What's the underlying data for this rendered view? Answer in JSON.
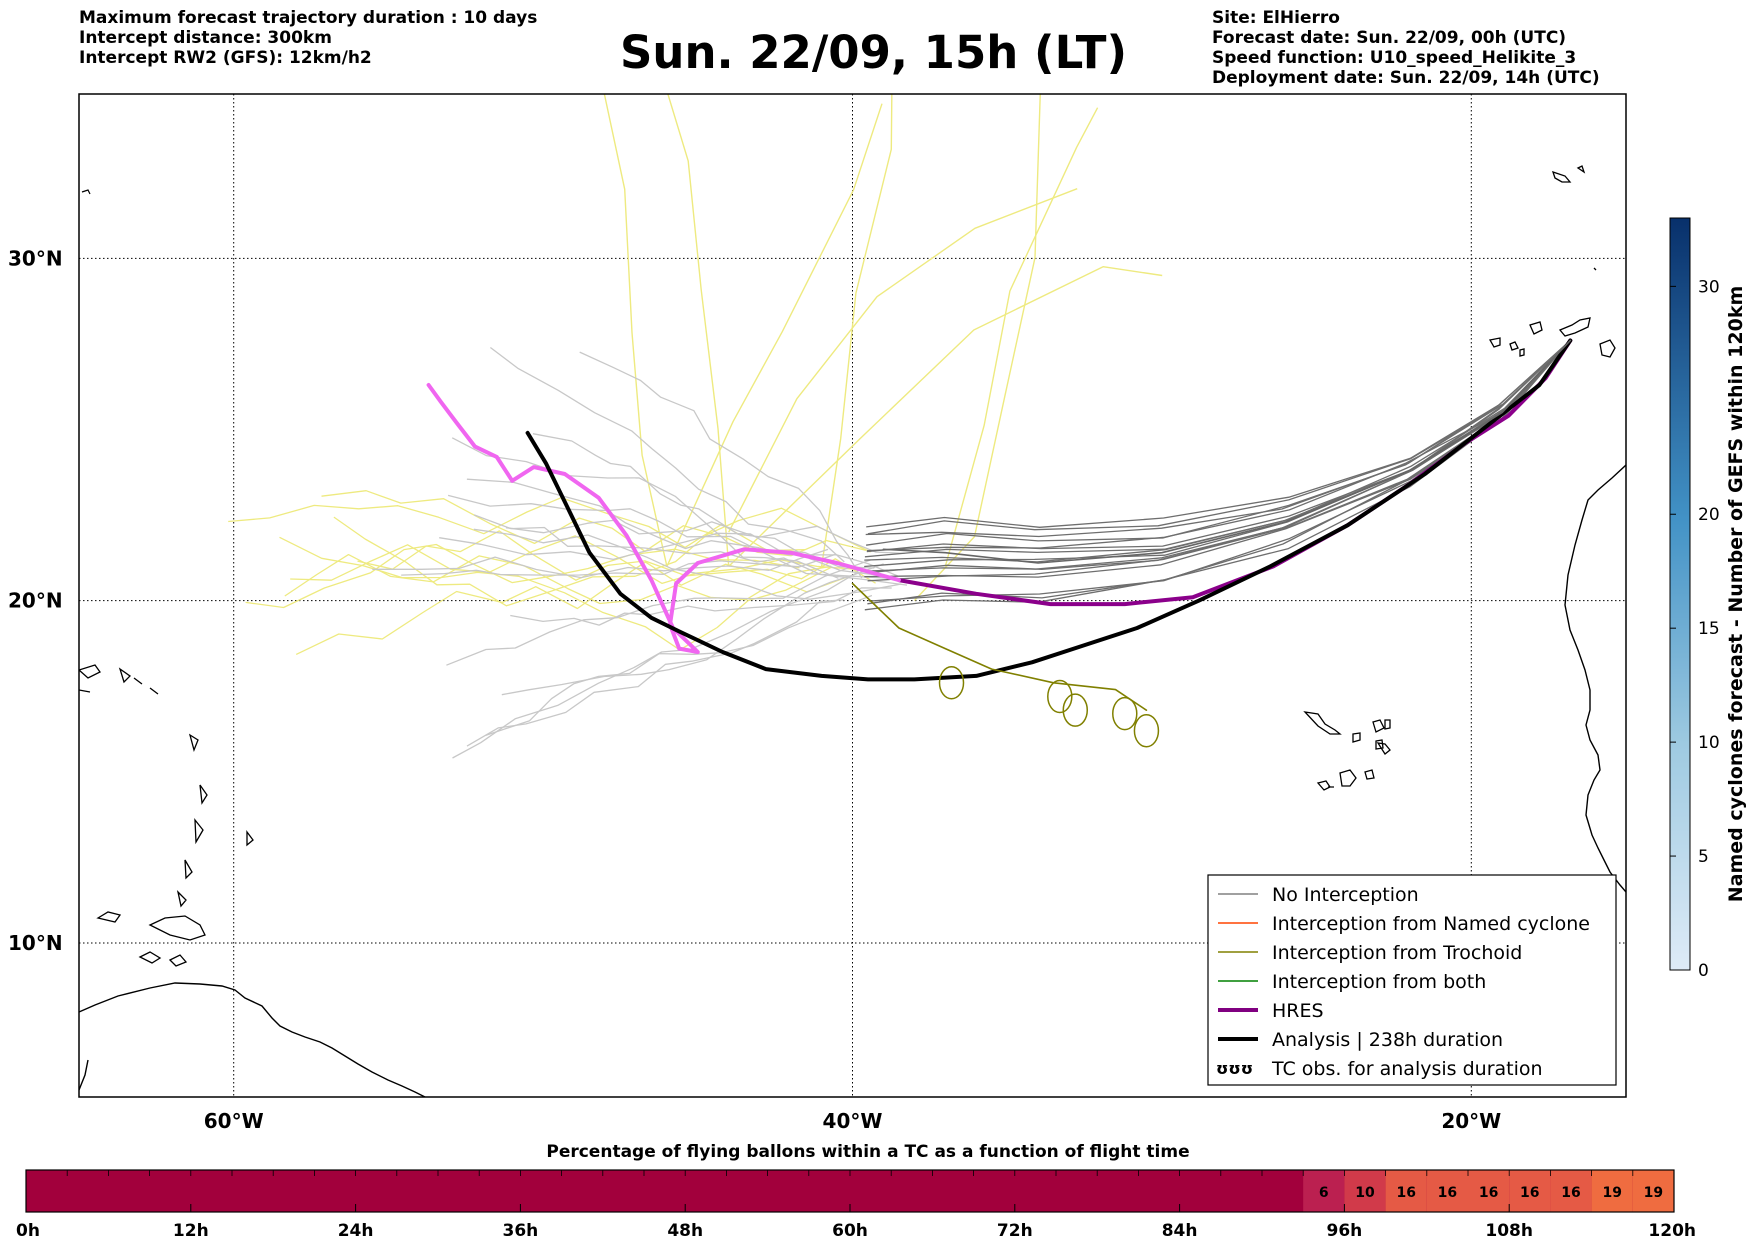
{
  "header": {
    "left_lines": [
      "Maximum forecast trajectory duration : 10 days",
      "Intercept distance: 300km",
      "Intercept RW2 (GFS):  12km/h2"
    ],
    "title": "Sun. 22/09, 15h (LT)",
    "right_lines": [
      "Site: ElHierro",
      "Forecast date: Sun. 22/09, 00h (UTC)",
      "Speed function: U10_speed_Helikite_3",
      "Deployment date: Sun. 22/09, 14h (UTC)"
    ]
  },
  "map": {
    "lon_range": [
      -65,
      -15
    ],
    "lat_range": [
      5.5,
      34.8
    ],
    "lon_ticks": [
      {
        "value": -60,
        "label": "60°W"
      },
      {
        "value": -40,
        "label": "40°W"
      },
      {
        "value": -20,
        "label": "20°W"
      }
    ],
    "lat_ticks": [
      {
        "value": 30,
        "label": "30°N"
      },
      {
        "value": 20,
        "label": "20°N"
      },
      {
        "value": 10,
        "label": "10°N"
      }
    ],
    "grid": true
  },
  "chart_data": {
    "type": "line",
    "x_unit": "longitude (°E)",
    "y_unit": "latitude (°N)",
    "series": [
      {
        "name": "HRES",
        "color": "#8b008b",
        "values": [
          [
            -16.8,
            27.6
          ],
          [
            -17.6,
            26.5
          ],
          [
            -18.8,
            25.4
          ],
          [
            -20.2,
            24.6
          ],
          [
            -22,
            23.4
          ],
          [
            -24,
            22.2
          ],
          [
            -26.4,
            21
          ],
          [
            -29,
            20.1
          ],
          [
            -31.2,
            19.9
          ],
          [
            -33.6,
            19.9
          ],
          [
            -36,
            20.2
          ],
          [
            -38.5,
            20.6
          ]
        ]
      },
      {
        "name": "HRES (pink segment)",
        "color": "#f066f0",
        "values": [
          [
            -38.5,
            20.6
          ],
          [
            -40.5,
            21.1
          ],
          [
            -42,
            21.4
          ],
          [
            -43.5,
            21.5
          ],
          [
            -45,
            21.1
          ],
          [
            -45.7,
            20.5
          ],
          [
            -45.9,
            19.3
          ],
          [
            -45.6,
            18.6
          ],
          [
            -45,
            18.5
          ],
          [
            -45.8,
            19.2
          ],
          [
            -46.5,
            20.6
          ],
          [
            -47.3,
            21.9
          ],
          [
            -48.2,
            23
          ],
          [
            -49.3,
            23.7
          ],
          [
            -50.3,
            23.9
          ],
          [
            -51,
            23.5
          ],
          [
            -51.5,
            24.2
          ],
          [
            -52.2,
            24.5
          ],
          [
            -52.8,
            25.2
          ],
          [
            -53.3,
            25.8
          ],
          [
            -53.7,
            26.3
          ]
        ]
      },
      {
        "name": "Analysis | 238h duration",
        "color": "#000000",
        "values": [
          [
            -16.8,
            27.6
          ],
          [
            -17.8,
            26.3
          ],
          [
            -19.5,
            25.1
          ],
          [
            -21.5,
            23.7
          ],
          [
            -24,
            22.2
          ],
          [
            -26.5,
            21
          ],
          [
            -28.8,
            20
          ],
          [
            -30.8,
            19.2
          ],
          [
            -32.5,
            18.7
          ],
          [
            -34.2,
            18.2
          ],
          [
            -36,
            17.8
          ],
          [
            -38,
            17.7
          ],
          [
            -39.5,
            17.7
          ],
          [
            -41,
            17.8
          ],
          [
            -42.8,
            18
          ],
          [
            -44.2,
            18.5
          ],
          [
            -45.6,
            19.1
          ],
          [
            -46.5,
            19.5
          ],
          [
            -47.5,
            20.2
          ],
          [
            -48.5,
            21.4
          ],
          [
            -49.2,
            22.7
          ],
          [
            -49.9,
            24
          ],
          [
            -50.5,
            24.9
          ]
        ]
      },
      {
        "name": "No Interception",
        "color": "#666666",
        "values": [
          [
            -16.8,
            27.6
          ],
          [
            -19,
            25.5
          ],
          [
            -22,
            23.8
          ],
          [
            -26,
            22.3
          ],
          [
            -30,
            21.4
          ],
          [
            -34,
            21.1
          ],
          [
            -37,
            21.4
          ],
          [
            -39,
            21.5
          ]
        ]
      },
      {
        "name": "Interception from Trochoid",
        "color": "#808000",
        "values": [
          [
            -40,
            20.5
          ],
          [
            -38.5,
            19.2
          ],
          [
            -37,
            18.6
          ],
          [
            -35.5,
            18
          ],
          [
            -33.5,
            17.6
          ],
          [
            -31.5,
            17.4
          ],
          [
            -30.5,
            16.8
          ]
        ]
      }
    ],
    "legend": {
      "placement": "lower-right",
      "entries": [
        {
          "label": "No Interception",
          "color": "#808080",
          "style": "thin"
        },
        {
          "label": "Interception from Named cyclone",
          "color": "#ff4500",
          "style": "thin"
        },
        {
          "label": "Interception from Trochoid",
          "color": "#808000",
          "style": "thin"
        },
        {
          "label": "Interception from both",
          "color": "#008000",
          "style": "thin"
        },
        {
          "label": "HRES",
          "color": "#800080",
          "style": "thick"
        },
        {
          "label": "Analysis | 238h duration",
          "color": "#000000",
          "style": "thick"
        },
        {
          "label": "TC obs. for analysis duration",
          "color": "#000000",
          "style": "symbol"
        }
      ]
    },
    "colorbar_right": {
      "label": "Named cyclones forecast - Number of GEFS within 120km",
      "range": [
        0,
        33
      ],
      "ticks": [
        0,
        5,
        10,
        15,
        20,
        30
      ]
    },
    "time_bar": {
      "title": "Percentage of flying ballons within a TC as a function of flight time",
      "range_hours": [
        0,
        120
      ],
      "tick_labels": [
        "0h",
        "12h",
        "24h",
        "36h",
        "48h",
        "60h",
        "72h",
        "84h",
        "96h",
        "108h",
        "120h"
      ],
      "cell_hours": 3,
      "cells": [
        {
          "start": 93,
          "value": 6,
          "color": "#bb2050"
        },
        {
          "start": 96,
          "value": 10,
          "color": "#d13a4a"
        },
        {
          "start": 99,
          "value": 16,
          "color": "#e55a45"
        },
        {
          "start": 102,
          "value": 16,
          "color": "#e55a45"
        },
        {
          "start": 105,
          "value": 16,
          "color": "#e55a45"
        },
        {
          "start": 108,
          "value": 16,
          "color": "#e55a45"
        },
        {
          "start": 111,
          "value": 16,
          "color": "#e55a45"
        },
        {
          "start": 114,
          "value": 19,
          "color": "#ef6c40"
        },
        {
          "start": 117,
          "value": 19,
          "color": "#ef6c40"
        }
      ],
      "base_color": "#a2003c"
    }
  }
}
